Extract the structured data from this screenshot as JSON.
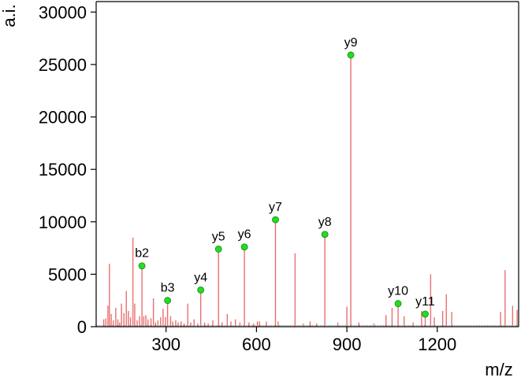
{
  "chart_data": {
    "type": "bar",
    "xlabel": "m/z",
    "ylabel": "a.i.",
    "xlim": [
      68,
      1470
    ],
    "ylim": [
      0,
      31000
    ],
    "xticks": [
      300,
      600,
      900,
      1200
    ],
    "yticks": [
      0,
      5000,
      10000,
      15000,
      20000,
      25000,
      30000
    ],
    "grid": false,
    "colors": {
      "peak": "#e87070",
      "marker": "#22dd22",
      "marker_edge": "#118811",
      "axis": "#000000",
      "baseline": "#888888"
    },
    "peaks": [
      [
        93,
        700
      ],
      [
        100,
        800
      ],
      [
        107,
        2000
      ],
      [
        112,
        6000
      ],
      [
        118,
        1200
      ],
      [
        125,
        600
      ],
      [
        133,
        1800
      ],
      [
        140,
        700
      ],
      [
        146,
        400
      ],
      [
        152,
        2200
      ],
      [
        160,
        1300
      ],
      [
        168,
        3400
      ],
      [
        175,
        1500
      ],
      [
        182,
        900
      ],
      [
        190,
        8500
      ],
      [
        196,
        2200
      ],
      [
        204,
        600
      ],
      [
        212,
        1000
      ],
      [
        220,
        5800
      ],
      [
        226,
        1000
      ],
      [
        233,
        1100
      ],
      [
        240,
        700
      ],
      [
        250,
        800
      ],
      [
        258,
        2700
      ],
      [
        265,
        400
      ],
      [
        273,
        600
      ],
      [
        282,
        900
      ],
      [
        290,
        1700
      ],
      [
        298,
        900
      ],
      [
        305,
        2500
      ],
      [
        315,
        1000
      ],
      [
        322,
        500
      ],
      [
        332,
        600
      ],
      [
        340,
        400
      ],
      [
        350,
        500
      ],
      [
        360,
        300
      ],
      [
        372,
        2200
      ],
      [
        382,
        400
      ],
      [
        393,
        700
      ],
      [
        405,
        300
      ],
      [
        415,
        3500
      ],
      [
        428,
        400
      ],
      [
        440,
        300
      ],
      [
        455,
        600
      ],
      [
        474,
        7400
      ],
      [
        486,
        400
      ],
      [
        503,
        1200
      ],
      [
        515,
        500
      ],
      [
        530,
        700
      ],
      [
        545,
        400
      ],
      [
        560,
        7600
      ],
      [
        575,
        400
      ],
      [
        590,
        300
      ],
      [
        603,
        500
      ],
      [
        610,
        500
      ],
      [
        633,
        500
      ],
      [
        663,
        10200
      ],
      [
        672,
        500
      ],
      [
        728,
        7000
      ],
      [
        755,
        300
      ],
      [
        778,
        500
      ],
      [
        800,
        300
      ],
      [
        827,
        8800
      ],
      [
        870,
        400
      ],
      [
        900,
        1900
      ],
      [
        913,
        25900
      ],
      [
        940,
        400
      ],
      [
        990,
        300
      ],
      [
        1030,
        1100
      ],
      [
        1050,
        1800
      ],
      [
        1070,
        2200
      ],
      [
        1090,
        1000
      ],
      [
        1120,
        400
      ],
      [
        1148,
        1500
      ],
      [
        1160,
        1200
      ],
      [
        1178,
        5000
      ],
      [
        1190,
        900
      ],
      [
        1218,
        1500
      ],
      [
        1230,
        3100
      ],
      [
        1248,
        1400
      ],
      [
        1410,
        1400
      ],
      [
        1425,
        5400
      ],
      [
        1450,
        2000
      ],
      [
        1465,
        1600
      ]
    ],
    "annotations": [
      {
        "label": "b2",
        "x": 220,
        "y": 5800
      },
      {
        "label": "b3",
        "x": 305,
        "y": 2500
      },
      {
        "label": "y4",
        "x": 415,
        "y": 3500
      },
      {
        "label": "y5",
        "x": 474,
        "y": 7400
      },
      {
        "label": "y6",
        "x": 560,
        "y": 7600
      },
      {
        "label": "y7",
        "x": 663,
        "y": 10200
      },
      {
        "label": "y8",
        "x": 827,
        "y": 8800
      },
      {
        "label": "y9",
        "x": 913,
        "y": 25900
      },
      {
        "label": "y10",
        "x": 1070,
        "y": 2200
      },
      {
        "label": "y11",
        "x": 1160,
        "y": 1200
      }
    ]
  }
}
